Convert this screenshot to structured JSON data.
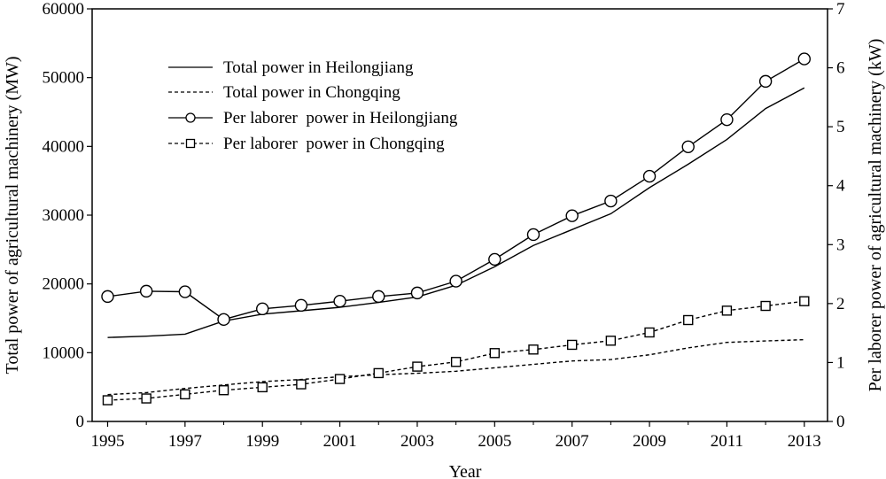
{
  "chart_data": {
    "type": "line",
    "title": "",
    "xlabel": "Year",
    "ylabel": "Total power of agricultural machinery (MW)",
    "y2label": "Per laborer power of agricultural machinery (kW)",
    "xlim": [
      1994.6,
      2013.6
    ],
    "ylim": [
      0,
      60000
    ],
    "y2lim": [
      0,
      7
    ],
    "x_ticks": [
      1995,
      1997,
      1999,
      2001,
      2003,
      2005,
      2007,
      2009,
      2011,
      2013
    ],
    "y_ticks": [
      0,
      10000,
      20000,
      30000,
      40000,
      50000,
      60000
    ],
    "y2_ticks": [
      0,
      1,
      2,
      3,
      4,
      5,
      6,
      7
    ],
    "x_tick_labels": [
      "1995",
      "1997",
      "1999",
      "2001",
      "2003",
      "2005",
      "2007",
      "2009",
      "2011",
      "2013"
    ],
    "y_tick_labels": [
      "0",
      "10000",
      "20000",
      "30000",
      "40000",
      "50000",
      "60000"
    ],
    "y2_tick_labels": [
      "0",
      "1",
      "2",
      "3",
      "4",
      "5",
      "6",
      "7"
    ],
    "legend_position": "top-left",
    "grid": false,
    "series": [
      {
        "name": "Total power in Heilongjiang",
        "axis": "left",
        "style": "solid",
        "marker": "none",
        "x": [
          1995,
          1996,
          1997,
          1998,
          1999,
          2000,
          2001,
          2002,
          2003,
          2004,
          2005,
          2006,
          2007,
          2008,
          2009,
          2010,
          2011,
          2012,
          2013
        ],
        "values": [
          12200,
          12400,
          12700,
          14600,
          15600,
          16100,
          16600,
          17300,
          18100,
          19800,
          22500,
          25600,
          27900,
          30200,
          34000,
          37400,
          41000,
          45500,
          48500
        ]
      },
      {
        "name": "Total power in Chongqing",
        "axis": "left",
        "style": "dashed",
        "marker": "none",
        "x": [
          1995,
          1996,
          1997,
          1998,
          1999,
          2000,
          2001,
          2002,
          2003,
          2004,
          2005,
          2006,
          2007,
          2008,
          2009,
          2010,
          2011,
          2012,
          2013
        ],
        "values": [
          3900,
          4200,
          4800,
          5300,
          5800,
          6100,
          6500,
          6800,
          7000,
          7300,
          7800,
          8300,
          8800,
          9000,
          9700,
          10700,
          11500,
          11700,
          11900
        ]
      },
      {
        "name": "Per laborer  power in Heilongjiang",
        "axis": "right",
        "style": "solid",
        "marker": "circle",
        "x": [
          1995,
          1996,
          1997,
          1998,
          1999,
          2000,
          2001,
          2002,
          2003,
          2004,
          2005,
          2006,
          2007,
          2008,
          2009,
          2010,
          2011,
          2012,
          2013
        ],
        "values": [
          2.12,
          2.21,
          2.2,
          1.73,
          1.91,
          1.97,
          2.04,
          2.12,
          2.18,
          2.38,
          2.75,
          3.17,
          3.49,
          3.74,
          4.16,
          4.66,
          5.12,
          5.77,
          6.15
        ]
      },
      {
        "name": "Per laborer  power in Chongqing",
        "axis": "right",
        "style": "dashed",
        "marker": "square",
        "x": [
          1995,
          1996,
          1997,
          1998,
          1999,
          2000,
          2001,
          2002,
          2003,
          2004,
          2005,
          2006,
          2007,
          2008,
          2009,
          2010,
          2011,
          2012,
          2013
        ],
        "values": [
          0.36,
          0.39,
          0.46,
          0.53,
          0.58,
          0.63,
          0.72,
          0.82,
          0.93,
          1.01,
          1.16,
          1.22,
          1.3,
          1.37,
          1.51,
          1.72,
          1.88,
          1.96,
          2.04
        ]
      }
    ]
  }
}
